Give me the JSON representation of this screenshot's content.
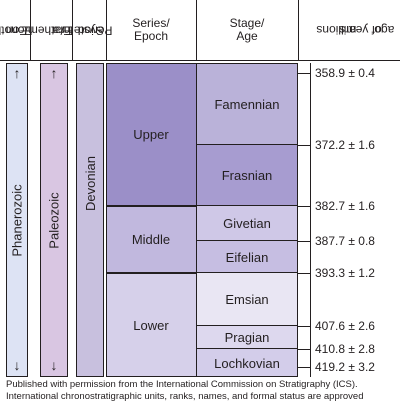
{
  "headers": {
    "eonothem": [
      "Eonothem/",
      "Eon"
    ],
    "erathem": [
      "Erathem/",
      "Era"
    ],
    "system": [
      "System/",
      "Period"
    ],
    "series": [
      "Series/",
      "Epoch"
    ],
    "stage": [
      "Stage/",
      "Age"
    ],
    "mya": [
      "millions",
      "of years",
      "ago"
    ]
  },
  "eon": "Phanerozoic",
  "era": "Paleozoic",
  "period": "Devonian",
  "epochs": [
    {
      "name": "Upper"
    },
    {
      "name": "Middle"
    },
    {
      "name": "Lower"
    }
  ],
  "stages": [
    {
      "name": "Famennian"
    },
    {
      "name": "Frasnian"
    },
    {
      "name": "Givetian"
    },
    {
      "name": "Eifelian"
    },
    {
      "name": "Emsian"
    },
    {
      "name": "Pragian"
    },
    {
      "name": "Lochkovian"
    }
  ],
  "ages": [
    "358.9 ± 0.4",
    "372.2 ± 1.6",
    "382.7 ± 1.6",
    "387.7 ± 0.8",
    "393.3 ± 1.2",
    "407.6 ± 2.6",
    "410.8 ± 2.8",
    "419.2 ± 3.2"
  ],
  "arrows": {
    "up": "↑",
    "down": "↓"
  },
  "footnote": [
    "Published with permission from the International Commission on Stratigraphy (ICS).",
    "International chronostratigraphic units, ranks, names, and formal status are approved"
  ],
  "colors": {
    "eon": "#dde3f4",
    "era": "#d9c6e2",
    "period": "#c8c0de",
    "upper": "#9b8fc8",
    "middle": "#c1b8de",
    "lower": "#d6d0ea",
    "famennian": "#bab2d9",
    "frasnian": "#a79cd0",
    "givetian": "#cfc8e7",
    "eifelian": "#c6bee2",
    "emsian": "#e9e6f3",
    "pragian": "#ddd8ee",
    "lochkovian": "#d3cdea"
  }
}
